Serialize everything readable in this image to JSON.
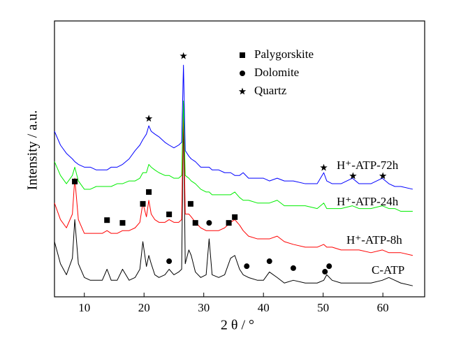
{
  "chart_data": {
    "type": "line",
    "xlabel": "2 θ / °",
    "ylabel": "Intensity / a.u.",
    "xlim": [
      5,
      67
    ],
    "xticks": [
      10,
      20,
      30,
      40,
      50,
      60
    ],
    "ylim": [
      0,
      100
    ],
    "x": [
      5,
      6,
      7,
      8,
      8.4,
      9,
      10,
      11,
      12,
      13,
      13.8,
      14.5,
      15.5,
      16.4,
      17.5,
      18.5,
      19.3,
      19.8,
      20.4,
      20.8,
      21.2,
      21.8,
      22.5,
      23.5,
      24.2,
      25,
      25.8,
      26.3,
      26.6,
      26.9,
      27.5,
      27.9,
      28.6,
      29.5,
      30.4,
      30.9,
      31.4,
      32.5,
      33.5,
      34.5,
      35.2,
      36,
      36.6,
      37.5,
      39,
      40,
      41,
      42.3,
      43.5,
      45,
      47,
      49,
      50.1,
      50.6,
      51.5,
      53,
      54.9,
      56,
      58,
      59.9,
      61,
      62,
      63,
      65
    ],
    "series": [
      {
        "name": "C-ATP",
        "color": "#000000",
        "values": [
          20,
          12,
          8,
          14,
          28,
          12,
          7,
          6,
          6,
          6,
          10,
          6,
          6,
          10,
          6,
          7,
          10,
          20,
          11,
          15,
          12,
          8,
          7,
          8,
          10,
          8,
          9,
          10,
          67,
          12,
          17,
          15,
          9,
          7,
          8,
          21,
          8,
          7,
          8,
          14,
          15,
          10,
          8,
          7,
          6,
          6,
          9,
          7,
          5,
          6,
          5,
          5,
          6,
          8,
          6,
          5,
          5,
          5,
          5,
          6,
          7,
          6,
          5,
          4
        ]
      },
      {
        "name": "H⁺-ATP-8h",
        "color": "#ff0000",
        "values": [
          34,
          28,
          25,
          30,
          43,
          28,
          23,
          23,
          23,
          23,
          24,
          23,
          23,
          24,
          24,
          25,
          27,
          34,
          29,
          35,
          30,
          28,
          27,
          27,
          28,
          27,
          27,
          28,
          70,
          30,
          30,
          29,
          27,
          25,
          24,
          24,
          24,
          24,
          25,
          27,
          28,
          26,
          24,
          22,
          21,
          21,
          21,
          22,
          20,
          19,
          18,
          18,
          19,
          18,
          18,
          17,
          17,
          17,
          16,
          17,
          16,
          16,
          16,
          15
        ]
      },
      {
        "name": "H⁺-ATP-24h",
        "color": "#00ee00",
        "values": [
          49,
          44,
          41,
          44,
          47,
          42,
          39,
          39,
          40,
          40,
          40,
          40,
          41,
          41,
          42,
          42,
          43,
          45,
          45,
          48,
          47,
          46,
          45,
          44,
          44,
          43,
          43,
          44,
          71,
          44,
          43,
          42,
          41,
          39,
          38,
          38,
          37,
          37,
          37,
          37,
          38,
          36,
          35,
          35,
          34,
          34,
          34,
          35,
          33,
          33,
          33,
          32,
          34,
          32,
          32,
          32,
          33,
          32,
          32,
          33,
          32,
          32,
          31,
          31
        ]
      },
      {
        "name": "H⁺-ATP-72h",
        "color": "#0000ff",
        "values": [
          60,
          55,
          52,
          50,
          49,
          48,
          47,
          47,
          46,
          46,
          46,
          47,
          47,
          48,
          50,
          53,
          55,
          57,
          59,
          62,
          60,
          59,
          58,
          56,
          55,
          54,
          55,
          56,
          84,
          53,
          51,
          50,
          49,
          47,
          47,
          47,
          46,
          46,
          45,
          45,
          44,
          44,
          45,
          43,
          43,
          43,
          42,
          43,
          42,
          42,
          41,
          41,
          45,
          42,
          41,
          41,
          43,
          41,
          41,
          43,
          41,
          40,
          40,
          39
        ]
      }
    ],
    "markers": [
      {
        "name": "Palygorskite",
        "symbol": "square",
        "x": [
          8.4,
          13.8,
          16.4,
          19.8,
          20.8,
          24.2,
          27.8,
          28.6,
          34.2,
          35.2
        ],
        "y": [
          41.8,
          27.8,
          26.8,
          33.7,
          38,
          29.9,
          33.7,
          26.8,
          26.8,
          28.9
        ]
      },
      {
        "name": "Dolomite",
        "symbol": "circle",
        "x": [
          24.2,
          30.9,
          37.2,
          41,
          45,
          50.3,
          51
        ],
        "y": [
          12.9,
          26.8,
          11.1,
          12.9,
          10.4,
          9.1,
          11.1
        ]
      },
      {
        "name": "Quartz",
        "symbol": "star",
        "x": [
          20.8,
          26.6,
          50.1,
          55,
          60
        ],
        "y": [
          64.6,
          87.3,
          46.8,
          43.8,
          43.8
        ]
      }
    ]
  }
}
